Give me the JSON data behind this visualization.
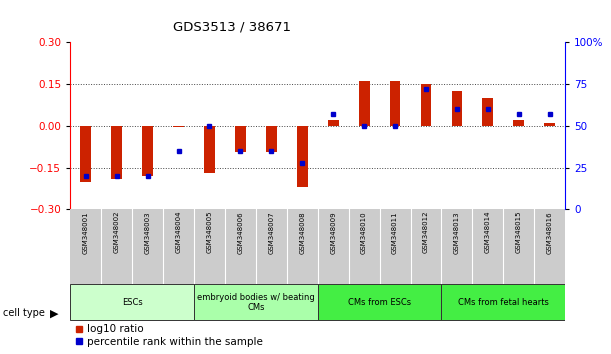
{
  "title": "GDS3513 / 38671",
  "samples": [
    "GSM348001",
    "GSM348002",
    "GSM348003",
    "GSM348004",
    "GSM348005",
    "GSM348006",
    "GSM348007",
    "GSM348008",
    "GSM348009",
    "GSM348010",
    "GSM348011",
    "GSM348012",
    "GSM348013",
    "GSM348014",
    "GSM348015",
    "GSM348016"
  ],
  "log10_ratio": [
    -0.2,
    -0.19,
    -0.18,
    -0.005,
    -0.17,
    -0.095,
    -0.095,
    -0.22,
    0.02,
    0.16,
    0.16,
    0.15,
    0.125,
    0.1,
    0.02,
    0.01
  ],
  "percentile_rank": [
    20,
    20,
    20,
    35,
    50,
    35,
    35,
    28,
    57,
    50,
    50,
    72,
    60,
    60,
    57,
    57
  ],
  "cell_types": [
    {
      "label": "ESCs",
      "start": 0,
      "end": 3,
      "color": "#ccffcc"
    },
    {
      "label": "embryoid bodies w/ beating\nCMs",
      "start": 4,
      "end": 7,
      "color": "#aaffaa"
    },
    {
      "label": "CMs from ESCs",
      "start": 8,
      "end": 11,
      "color": "#44ee44"
    },
    {
      "label": "CMs from fetal hearts",
      "start": 12,
      "end": 15,
      "color": "#44ee44"
    }
  ],
  "ylim_left": [
    -0.3,
    0.3
  ],
  "ylim_right": [
    0,
    100
  ],
  "yticks_left": [
    -0.3,
    -0.15,
    0.0,
    0.15,
    0.3
  ],
  "yticks_right": [
    0,
    25,
    50,
    75,
    100
  ],
  "bar_color_red": "#cc2200",
  "bar_color_blue": "#0000cc",
  "bg_color": "#ffffff",
  "plot_bg": "#ffffff",
  "grid_color": "#444444",
  "sample_bg": "#cccccc",
  "legend_red": "#cc2200",
  "legend_blue": "#0000cc"
}
